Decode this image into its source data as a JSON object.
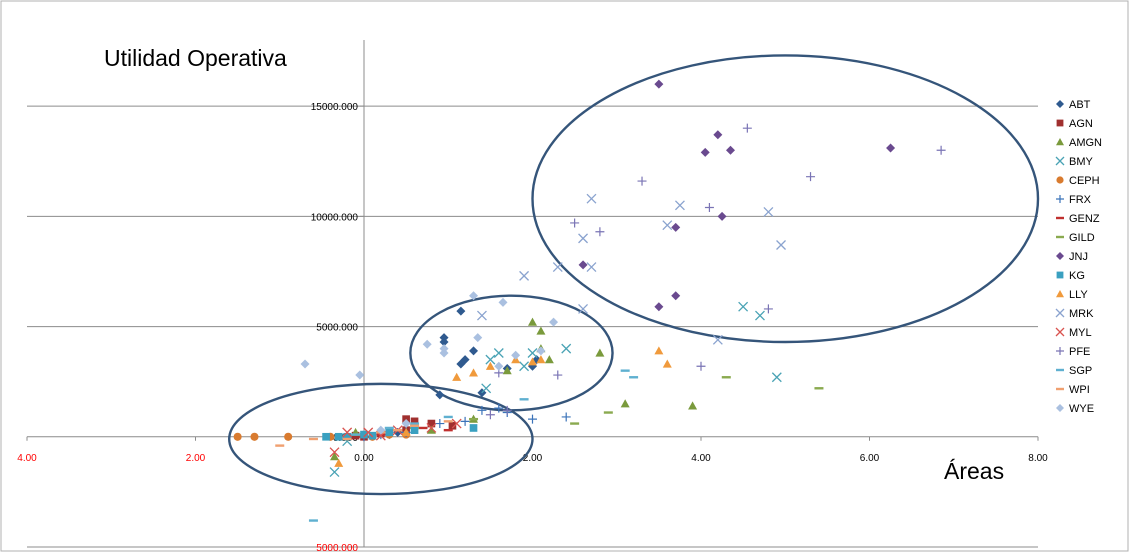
{
  "chart_data": {
    "type": "scatter",
    "title": "",
    "ylabel": "Utilidad Operativa",
    "xlabel": "Áreas",
    "xlim": [
      -4,
      8
    ],
    "ylim": [
      -5000,
      18000
    ],
    "grid": "horizontal",
    "legend_position": "right",
    "x_ticks": [
      {
        "value": -4,
        "label": "4.00",
        "color": "#ff0000"
      },
      {
        "value": -2,
        "label": "2.00",
        "color": "#ff0000"
      },
      {
        "value": 0,
        "label": "0.00",
        "color": "#000000"
      },
      {
        "value": 2,
        "label": "2.00",
        "color": "#000000"
      },
      {
        "value": 4,
        "label": "4.00",
        "color": "#000000"
      },
      {
        "value": 6,
        "label": "6.00",
        "color": "#000000"
      },
      {
        "value": 8,
        "label": "8.00",
        "color": "#000000"
      }
    ],
    "y_ticks": [
      {
        "value": 15000,
        "label": "15000.000",
        "color": "#000000"
      },
      {
        "value": 10000,
        "label": "10000.000",
        "color": "#000000"
      },
      {
        "value": 5000,
        "label": "5000.000",
        "color": "#000000"
      },
      {
        "value": 0,
        "label": "0.000",
        "color": "#000000"
      },
      {
        "value": -5000,
        "label": "5000.000",
        "color": "#ff0000"
      }
    ],
    "ellipses": [
      {
        "cx": 5.0,
        "cy": 10800,
        "rx": 3.0,
        "ry": 6500
      },
      {
        "cx": 1.75,
        "cy": 3800,
        "rx": 1.2,
        "ry": 2600
      },
      {
        "cx": 0.2,
        "cy": -100,
        "rx": 1.8,
        "ry": 2500
      }
    ],
    "series": [
      {
        "name": "ABT",
        "color": "#2f5a8f",
        "marker": "diamond",
        "points": [
          [
            1.15,
            5700
          ],
          [
            0.95,
            4500
          ],
          [
            0.95,
            4300
          ],
          [
            1.3,
            3900
          ],
          [
            1.2,
            3500
          ],
          [
            1.15,
            3300
          ],
          [
            2.05,
            3500
          ],
          [
            2.0,
            3200
          ],
          [
            0.9,
            1900
          ],
          [
            1.4,
            2000
          ],
          [
            1.7,
            3100
          ],
          [
            0.4,
            200
          ],
          [
            0.6,
            400
          ],
          [
            0.3,
            100
          ]
        ]
      },
      {
        "name": "AGN",
        "color": "#a0302f",
        "marker": "square",
        "points": [
          [
            0.5,
            800
          ],
          [
            0.6,
            700
          ],
          [
            0.8,
            600
          ],
          [
            0.5,
            300
          ],
          [
            0.3,
            200
          ],
          [
            1.05,
            500
          ],
          [
            0.0,
            0
          ],
          [
            -0.1,
            50
          ],
          [
            0.2,
            150
          ]
        ]
      },
      {
        "name": "AMGN",
        "color": "#7a9a3c",
        "marker": "triangle",
        "points": [
          [
            2.0,
            5200
          ],
          [
            2.1,
            4800
          ],
          [
            2.1,
            4000
          ],
          [
            2.2,
            3500
          ],
          [
            2.8,
            3800
          ],
          [
            1.7,
            3000
          ],
          [
            3.1,
            1500
          ],
          [
            3.9,
            1400
          ],
          [
            1.3,
            800
          ],
          [
            0.8,
            300
          ],
          [
            -0.35,
            -900
          ],
          [
            -0.1,
            200
          ]
        ]
      },
      {
        "name": "BMY",
        "color": "#4aa3b5",
        "marker": "x",
        "points": [
          [
            1.6,
            3800
          ],
          [
            2.4,
            4000
          ],
          [
            1.5,
            3500
          ],
          [
            1.45,
            2200
          ],
          [
            4.5,
            5900
          ],
          [
            4.7,
            5500
          ],
          [
            4.9,
            2700
          ],
          [
            1.9,
            3200
          ],
          [
            2.0,
            3800
          ],
          [
            -0.35,
            -1600
          ],
          [
            -0.2,
            -200
          ]
        ]
      },
      {
        "name": "CEPH",
        "color": "#d97b2f",
        "marker": "circle",
        "points": [
          [
            -1.5,
            0
          ],
          [
            -1.3,
            0
          ],
          [
            -0.9,
            0
          ],
          [
            -0.4,
            0
          ],
          [
            -0.2,
            0
          ],
          [
            0.1,
            0
          ],
          [
            0.3,
            100
          ],
          [
            0.5,
            100
          ]
        ]
      },
      {
        "name": "FRX",
        "color": "#3b73b9",
        "marker": "plus",
        "points": [
          [
            2.4,
            900
          ],
          [
            2.0,
            800
          ],
          [
            1.6,
            1300
          ],
          [
            1.4,
            1200
          ],
          [
            1.2,
            700
          ],
          [
            0.9,
            600
          ],
          [
            0.5,
            200
          ],
          [
            0.2,
            100
          ],
          [
            0.0,
            0
          ],
          [
            1.7,
            1100
          ]
        ]
      },
      {
        "name": "GENZ",
        "color": "#c0302f",
        "marker": "dash",
        "points": [
          [
            0.2,
            100
          ],
          [
            0.4,
            300
          ],
          [
            0.7,
            400
          ],
          [
            0.0,
            0
          ],
          [
            1.0,
            300
          ]
        ]
      },
      {
        "name": "GILD",
        "color": "#8aaa4f",
        "marker": "dash",
        "points": [
          [
            2.5,
            600
          ],
          [
            2.9,
            1100
          ],
          [
            4.3,
            2700
          ],
          [
            5.4,
            2200
          ],
          [
            1.3,
            800
          ],
          [
            0.6,
            400
          ]
        ]
      },
      {
        "name": "JNJ",
        "color": "#6a4a8f",
        "marker": "diamond",
        "points": [
          [
            3.5,
            16000
          ],
          [
            4.2,
            13700
          ],
          [
            4.35,
            13000
          ],
          [
            4.05,
            12900
          ],
          [
            6.25,
            13100
          ],
          [
            4.25,
            10000
          ],
          [
            3.7,
            9500
          ],
          [
            2.6,
            7800
          ],
          [
            3.7,
            6400
          ],
          [
            3.5,
            5900
          ]
        ]
      },
      {
        "name": "KG",
        "color": "#3aa0c0",
        "marker": "square",
        "points": [
          [
            -0.45,
            0
          ],
          [
            -0.3,
            0
          ],
          [
            -0.2,
            0
          ],
          [
            0.0,
            100
          ],
          [
            0.3,
            200
          ],
          [
            0.6,
            300
          ],
          [
            1.3,
            400
          ],
          [
            0.1,
            50
          ]
        ]
      },
      {
        "name": "LLY",
        "color": "#f09a3c",
        "marker": "triangle",
        "points": [
          [
            1.8,
            3500
          ],
          [
            2.1,
            3500
          ],
          [
            1.5,
            3200
          ],
          [
            1.3,
            2900
          ],
          [
            1.1,
            2700
          ],
          [
            3.5,
            3900
          ],
          [
            3.6,
            3300
          ],
          [
            2.0,
            3400
          ],
          [
            0.5,
            200
          ],
          [
            -0.3,
            -1200
          ]
        ]
      },
      {
        "name": "MRK",
        "color": "#8aa3cf",
        "marker": "x",
        "points": [
          [
            2.7,
            10800
          ],
          [
            3.75,
            10500
          ],
          [
            4.8,
            10200
          ],
          [
            4.95,
            8700
          ],
          [
            2.6,
            9000
          ],
          [
            2.3,
            7700
          ],
          [
            2.7,
            7700
          ],
          [
            1.9,
            7300
          ],
          [
            2.6,
            5800
          ],
          [
            4.2,
            4400
          ],
          [
            3.6,
            9600
          ],
          [
            1.4,
            5500
          ]
        ]
      },
      {
        "name": "MYL",
        "color": "#d9534f",
        "marker": "x",
        "points": [
          [
            -0.35,
            -700
          ],
          [
            0.05,
            200
          ],
          [
            0.4,
            300
          ],
          [
            0.8,
            400
          ],
          [
            1.1,
            600
          ],
          [
            -0.2,
            200
          ],
          [
            0.2,
            50
          ]
        ]
      },
      {
        "name": "PFE",
        "color": "#7a74b5",
        "marker": "plus",
        "points": [
          [
            4.55,
            14000
          ],
          [
            6.85,
            13000
          ],
          [
            3.3,
            11600
          ],
          [
            5.3,
            11800
          ],
          [
            4.1,
            10400
          ],
          [
            2.8,
            9300
          ],
          [
            2.5,
            9700
          ],
          [
            4.8,
            5800
          ],
          [
            4.0,
            3200
          ],
          [
            1.6,
            2900
          ],
          [
            2.3,
            2800
          ],
          [
            1.7,
            1200
          ],
          [
            1.5,
            1000
          ]
        ]
      },
      {
        "name": "SGP",
        "color": "#5fb0d0",
        "marker": "dash",
        "points": [
          [
            -0.6,
            -3800
          ],
          [
            3.1,
            3000
          ],
          [
            3.2,
            2700
          ],
          [
            1.9,
            1700
          ],
          [
            1.0,
            900
          ],
          [
            0.3,
            400
          ],
          [
            -0.1,
            100
          ],
          [
            0.6,
            600
          ]
        ]
      },
      {
        "name": "WPI",
        "color": "#f0a070",
        "marker": "dash",
        "points": [
          [
            -1.0,
            -400
          ],
          [
            -0.6,
            -100
          ],
          [
            0.2,
            200
          ],
          [
            0.6,
            500
          ],
          [
            1.0,
            700
          ],
          [
            0.4,
            300
          ],
          [
            -0.2,
            -100
          ]
        ]
      },
      {
        "name": "WYE",
        "color": "#aac0e0",
        "marker": "diamond",
        "points": [
          [
            -0.7,
            3300
          ],
          [
            -0.05,
            2800
          ],
          [
            1.3,
            6400
          ],
          [
            1.65,
            6100
          ],
          [
            2.25,
            5200
          ],
          [
            0.75,
            4200
          ],
          [
            0.95,
            4000
          ],
          [
            0.95,
            3800
          ],
          [
            1.35,
            4500
          ],
          [
            1.8,
            3700
          ],
          [
            1.6,
            3200
          ],
          [
            2.1,
            3900
          ],
          [
            0.5,
            600
          ],
          [
            0.2,
            300
          ]
        ]
      }
    ]
  }
}
